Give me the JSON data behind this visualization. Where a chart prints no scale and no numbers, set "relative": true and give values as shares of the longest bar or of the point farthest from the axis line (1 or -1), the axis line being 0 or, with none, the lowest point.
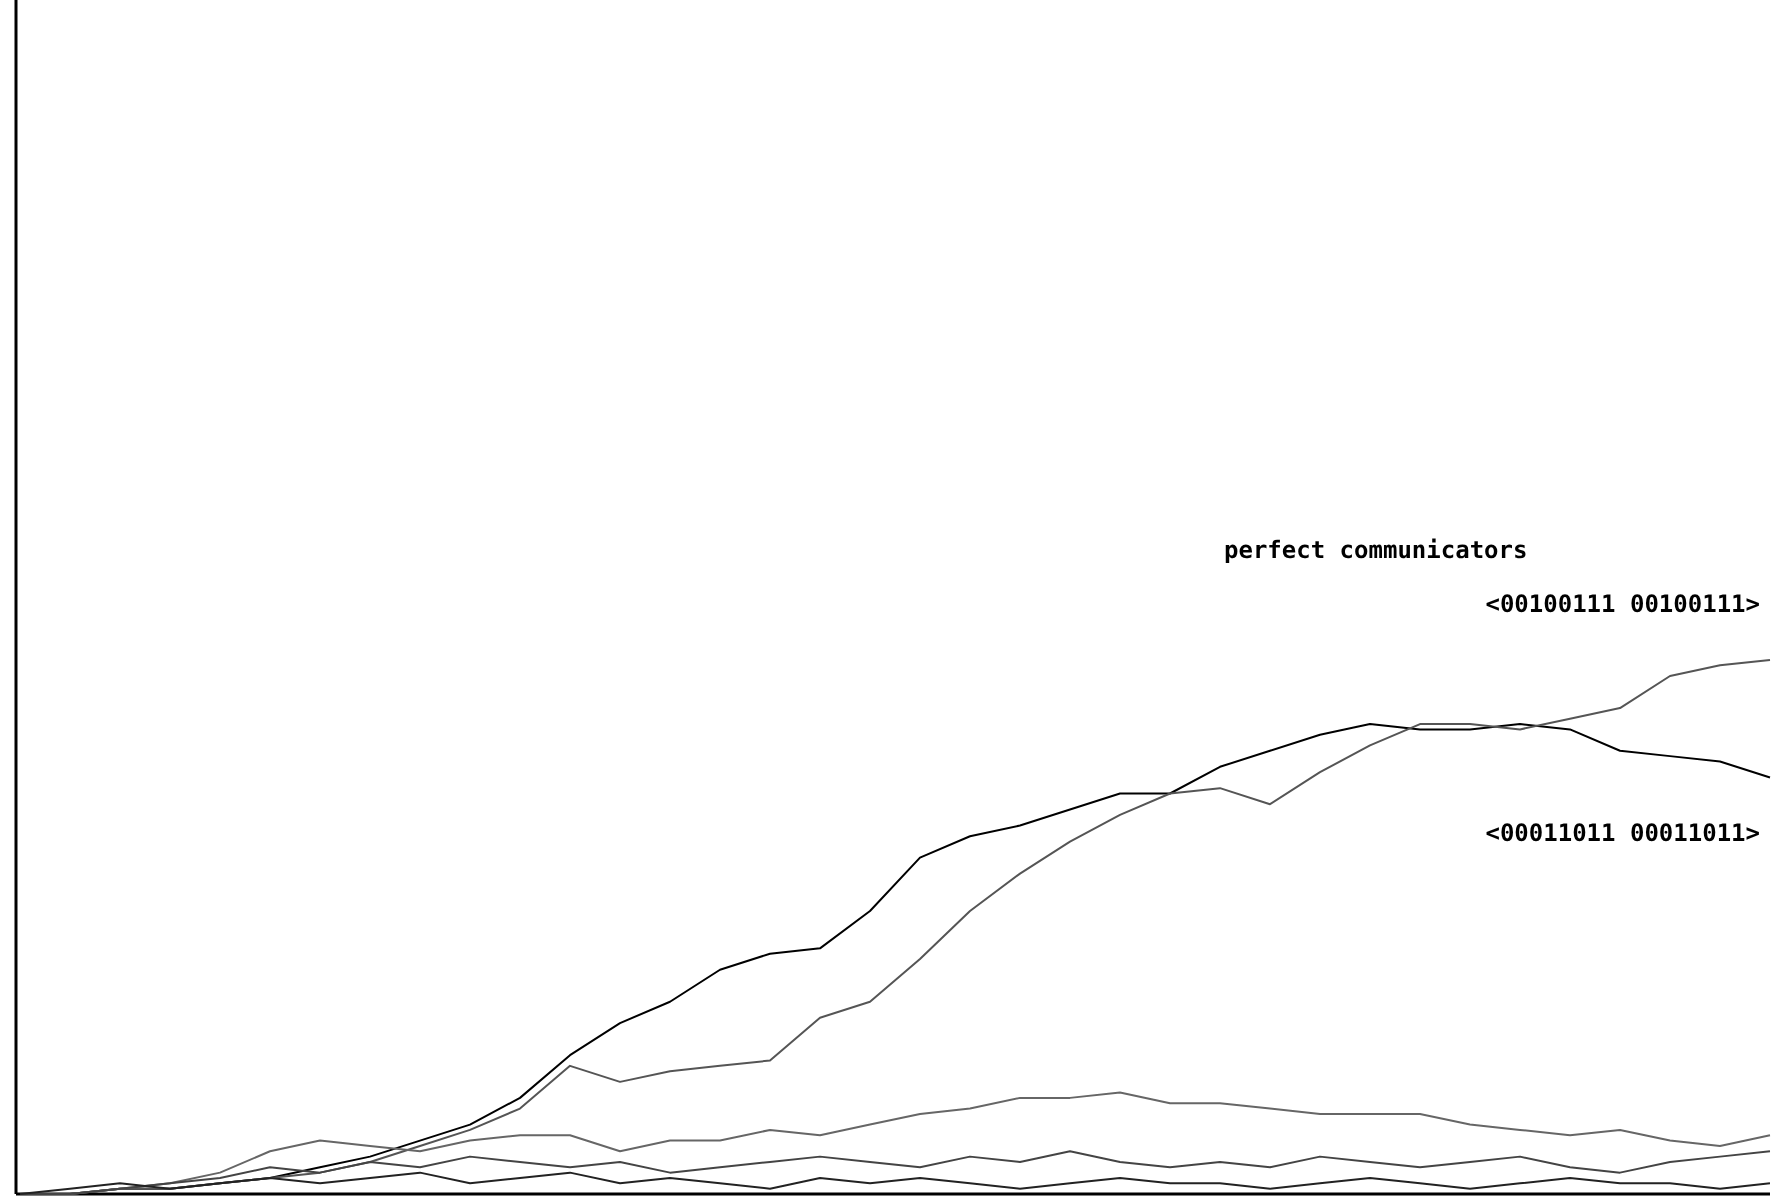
{
  "chart_data": {
    "type": "line",
    "relative": true,
    "annotations": [
      "perfect communicators"
    ],
    "categories": [
      null,
      null,
      null,
      null,
      null,
      null,
      null,
      null,
      null,
      null,
      null,
      null,
      null,
      null,
      null,
      null,
      null,
      null,
      null,
      null,
      null,
      null,
      null,
      null,
      null,
      null,
      null,
      null,
      null,
      null,
      null,
      null,
      null,
      null,
      null,
      null
    ],
    "series": [
      {
        "name": "<00011011 00011011>",
        "color": "#000000",
        "values": [
          0,
          0,
          0.01,
          0.01,
          0.02,
          0.03,
          0.05,
          0.07,
          0.1,
          0.13,
          0.18,
          0.26,
          0.32,
          0.36,
          0.42,
          0.45,
          0.46,
          0.53,
          0.63,
          0.67,
          0.69,
          0.72,
          0.75,
          0.75,
          0.8,
          0.83,
          0.86,
          0.88,
          0.87,
          0.87,
          0.88,
          0.87,
          0.83,
          0.82,
          0.81,
          0.78
        ]
      },
      {
        "name": "<00100111 00100111>",
        "color": "#555555",
        "values": [
          0,
          0,
          0.01,
          0.01,
          0.02,
          0.03,
          0.04,
          0.06,
          0.09,
          0.12,
          0.16,
          0.24,
          0.21,
          0.23,
          0.24,
          0.25,
          0.33,
          0.36,
          0.44,
          0.53,
          0.6,
          0.66,
          0.71,
          0.75,
          0.76,
          0.73,
          0.79,
          0.84,
          0.88,
          0.88,
          0.87,
          0.89,
          0.91,
          0.97,
          0.99,
          1
        ]
      },
      {
        "color": "#666666",
        "values": [
          0,
          0,
          0.01,
          0.02,
          0.04,
          0.08,
          0.1,
          0.09,
          0.08,
          0.1,
          0.11,
          0.11,
          0.08,
          0.1,
          0.1,
          0.12,
          0.11,
          0.13,
          0.15,
          0.16,
          0.18,
          0.18,
          0.19,
          0.17,
          0.17,
          0.16,
          0.15,
          0.15,
          0.15,
          0.13,
          0.12,
          0.11,
          0.12,
          0.1,
          0.09,
          0.11
        ]
      },
      {
        "color": "#444444",
        "values": [
          0,
          0,
          0.01,
          0.02,
          0.03,
          0.05,
          0.04,
          0.06,
          0.05,
          0.07,
          0.06,
          0.05,
          0.06,
          0.04,
          0.05,
          0.06,
          0.07,
          0.06,
          0.05,
          0.07,
          0.06,
          0.08,
          0.06,
          0.05,
          0.06,
          0.05,
          0.07,
          0.06,
          0.05,
          0.06,
          0.07,
          0.05,
          0.04,
          0.06,
          0.07,
          0.08
        ]
      },
      {
        "color": "#222222",
        "values": [
          0,
          0.01,
          0.02,
          0.01,
          0.02,
          0.03,
          0.02,
          0.03,
          0.04,
          0.02,
          0.03,
          0.04,
          0.02,
          0.03,
          0.02,
          0.01,
          0.03,
          0.02,
          0.03,
          0.02,
          0.01,
          0.02,
          0.03,
          0.02,
          0.02,
          0.01,
          0.02,
          0.03,
          0.02,
          0.01,
          0.02,
          0.03,
          0.02,
          0.02,
          0.01,
          0.02
        ]
      }
    ]
  }
}
